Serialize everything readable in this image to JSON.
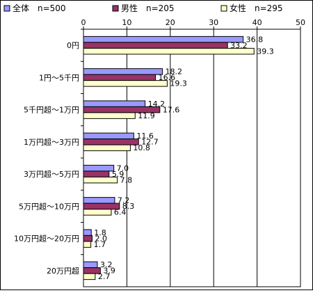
{
  "chart_data": {
    "type": "bar",
    "orientation": "horizontal",
    "categories": [
      "0円",
      "1円～5千円",
      "5千円超～1万円",
      "1万円超～3万円",
      "3万円超～5万円",
      "5万円超～10万円",
      "10万円超～20万円",
      "20万円超"
    ],
    "series": [
      {
        "name": "全体　n=500",
        "color": "#9999ff",
        "values": [
          36.8,
          18.2,
          14.2,
          11.6,
          7.0,
          7.2,
          1.8,
          3.2
        ]
      },
      {
        "name": "男性　n=205",
        "color": "#993366",
        "values": [
          33.2,
          16.6,
          17.6,
          12.7,
          5.9,
          8.3,
          2.0,
          3.9
        ]
      },
      {
        "name": "女性　n=295",
        "color": "#ffffcc",
        "values": [
          39.3,
          19.3,
          11.9,
          10.8,
          7.8,
          6.4,
          1.7,
          2.7
        ]
      }
    ],
    "data_labels": [
      [
        "36.8",
        "18.2",
        "14.2",
        "11.6",
        "7.0",
        "7.2",
        "1.8",
        "3.2"
      ],
      [
        "33.2",
        "16.6",
        "17.6",
        "12.7",
        "5.9",
        "8.3",
        "2.0",
        "3.9"
      ],
      [
        "39.3",
        "19.3",
        "11.9",
        "10.8",
        "7.8",
        "6.4",
        "1.7",
        "2.7"
      ]
    ],
    "xlim": [
      0,
      50
    ],
    "ticks": [
      "0",
      "10",
      "20",
      "30",
      "40",
      "50"
    ],
    "tick_values": [
      0,
      10,
      20,
      30,
      40,
      50
    ],
    "grid": true,
    "legend_position": "top"
  }
}
